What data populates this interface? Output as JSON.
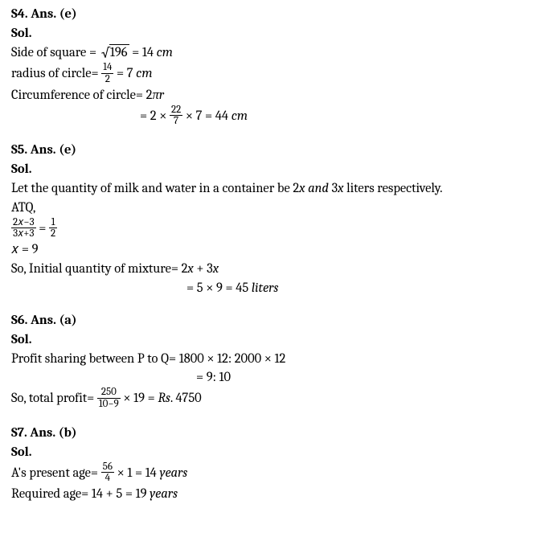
{
  "s4": {
    "heading": "S4. Ans. (e)",
    "sol": "Sol.",
    "line1_pre": "Side of square = ",
    "sqrt_val": "196",
    "line1_post": " = 14 ",
    "cm1": "cm",
    "line2_pre": "radius of circle= ",
    "frac1_num": "14",
    "frac1_den": "2",
    "line2_post": " = 7 ",
    "cm2": "cm",
    "line3": "Circumference of circle= 2πr",
    "line4_pre": "= 2 × ",
    "frac2_num": "22",
    "frac2_den": "7",
    "line4_post": " × 7 = 44 ",
    "cm3": "cm"
  },
  "s5": {
    "heading": "S5. Ans. (e)",
    "sol": "Sol.",
    "line1a": "Let the quantity of milk and water in a container be 2",
    "x1": "x and",
    "line1b": " 3",
    "x2": "x",
    "line1c": " liters respectively.",
    "atq": "ATQ,",
    "frac1_num": "2𝑥−3",
    "frac1_den": "3𝑥+3",
    "eq": " = ",
    "frac2_num": "1",
    "frac2_den": "2",
    "line_x": "𝑥 = 9",
    "line4a": "So, Initial quantity of mixture= 2",
    "x3": "x",
    "line4b": " + 3",
    "x4": "x",
    "line5": "= 5 × 9 = 45 ",
    "liters": "liters"
  },
  "s6": {
    "heading": "S6. Ans. (a)",
    "sol": "Sol.",
    "line1": "Profit sharing between P to Q= 1800 × 12: 2000 × 12",
    "line2": "= 9: 10",
    "line3_pre": "So, total profit= ",
    "frac_num": "250",
    "frac_den": "10−9",
    "line3_post": " × 19 = ",
    "rs": "Rs",
    "line3_end": ". 4750"
  },
  "s7": {
    "heading": "S7. Ans. (b)",
    "sol": "Sol.",
    "line1_pre": "A's present age= ",
    "frac_num": "56",
    "frac_den": "4",
    "line1_post": " × 1 = 14 ",
    "years1": "years",
    "line2": "Required age= 14 + 5 = 19 ",
    "years2": "years"
  }
}
